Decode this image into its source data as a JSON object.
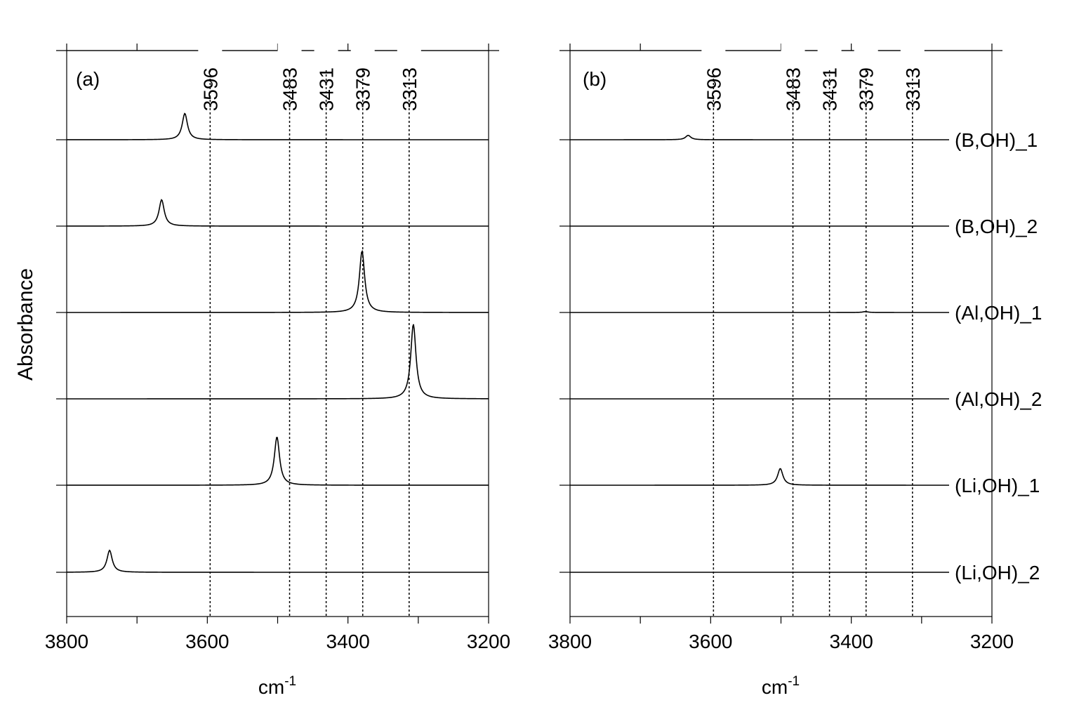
{
  "chart_data": [
    {
      "panel": "(a)",
      "type": "line",
      "xlabel": "cm",
      "xlabel_sup": "-1",
      "ylabel": "Absorbance",
      "xlim": [
        3800,
        3200
      ],
      "x_reversed": true,
      "x_ticks": [
        3800,
        3600,
        3400,
        3200
      ],
      "reference_lines": [
        3596,
        3483,
        3431,
        3379,
        3313
      ],
      "series": [
        {
          "name": "(B,OH)_1",
          "peak_center": 3632,
          "peak_height": 0.3
        },
        {
          "name": "(B,OH)_2",
          "peak_center": 3665,
          "peak_height": 0.3
        },
        {
          "name": "(Al,OH)_1",
          "peak_center": 3380,
          "peak_height": 0.7
        },
        {
          "name": "(Al,OH)_2",
          "peak_center": 3307,
          "peak_height": 0.85
        },
        {
          "name": "(Li,OH)_1",
          "peak_center": 3501,
          "peak_height": 0.55
        },
        {
          "name": "(Li,OH)_2",
          "peak_center": 3739,
          "peak_height": 0.25
        }
      ]
    },
    {
      "panel": "(b)",
      "type": "line",
      "xlabel": "cm",
      "xlabel_sup": "-1",
      "xlim": [
        3800,
        3200
      ],
      "x_reversed": true,
      "x_ticks": [
        3800,
        3600,
        3400,
        3200
      ],
      "reference_lines": [
        3596,
        3483,
        3431,
        3379,
        3313
      ],
      "series": [
        {
          "name": "(B,OH)_1",
          "peak_center": 3632,
          "peak_height": 0.05
        },
        {
          "name": "(B,OH)_2",
          "peak_center": 3665,
          "peak_height": 0.0
        },
        {
          "name": "(Al,OH)_1",
          "peak_center": 3380,
          "peak_height": 0.01
        },
        {
          "name": "(Al,OH)_2",
          "peak_center": 3307,
          "peak_height": 0.0
        },
        {
          "name": "(Li,OH)_1",
          "peak_center": 3501,
          "peak_height": 0.19
        },
        {
          "name": "(Li,OH)_2",
          "peak_center": 3739,
          "peak_height": 0.0
        }
      ]
    }
  ]
}
